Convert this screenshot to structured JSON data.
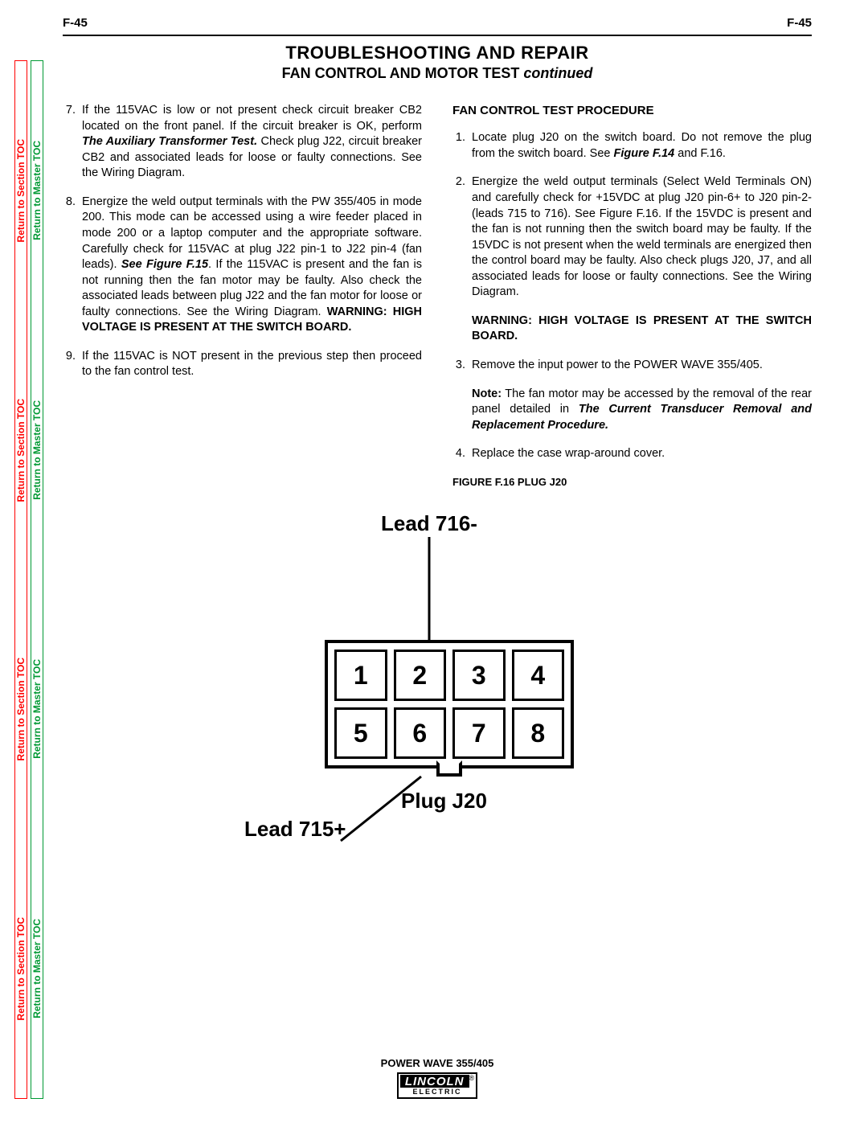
{
  "page_num": "F-45",
  "side_links": {
    "section": "Return to Section TOC",
    "master": "Return to Master TOC"
  },
  "title": "TROUBLESHOOTING AND REPAIR",
  "subtitle_main": "FAN CONTROL AND MOTOR TEST ",
  "subtitle_suffix": "continued",
  "left_items": [
    {
      "n": "7.",
      "html": "If the 115VAC is low or not present check circuit breaker CB2 located on the front panel.  If the circuit breaker is OK, perform <span class='bi'>The Auxiliary Transformer Test.</span>  Check plug J22, circuit breaker CB2 and associated leads for loose or faulty connections.  See the Wiring Diagram."
    },
    {
      "n": "8.",
      "html": "Energize the weld output terminals with the PW 355/405 in mode 200.  This mode can be accessed using a wire feeder placed in mode 200 or a laptop computer and the appropriate software.  Carefully check for 115VAC at plug J22 pin-1 to J22 pin-4 (fan leads).  <span class='bi'>See Figure F.15</span>.  If the 115VAC is present and the fan is not running then the fan motor may be faulty. Also check the associated leads between plug J22 and the fan motor for loose or faulty connections.  See the Wiring Diagram.  <span class='b'>WARNING: HIGH VOLTAGE IS PRESENT AT THE SWITCH BOARD.</span>"
    },
    {
      "n": "9.",
      "html": "If the 115VAC is NOT present in the previous step then proceed to the fan control test."
    }
  ],
  "right_head": "FAN CONTROL TEST PROCEDURE",
  "right_items": [
    {
      "n": "1.",
      "html": "Locate plug J20 on the switch board.  Do not remove the plug from the switch board.  See <span class='bi'>Figure F.14</span> and F.16."
    },
    {
      "n": "2.",
      "html": "Energize the weld output terminals (Select Weld Terminals ON) and carefully check for +15VDC at plug J20 pin-6+ to J20 pin-2- (leads 715 to 716).  See Figure F.16.  If the 15VDC is present and the fan is not running then the switch board may be faulty.   If the 15VDC is not present when the weld terminals are energized then the control board may be faulty.  Also check plugs J20, J7, and all associated leads for loose or faulty connections. See the Wiring Diagram."
    }
  ],
  "warning": "WARNING: HIGH VOLTAGE IS PRESENT AT THE SWITCH BOARD.",
  "right_items2": [
    {
      "n": "3.",
      "html": "Remove the input power to the POWER WAVE 355/405."
    }
  ],
  "note_html": "<span class='b'>Note:</span>  The fan motor may be accessed by the removal of the rear panel detailed in <span class='bi'>The Current Transducer Removal and Replacement Procedure.</span>",
  "right_items3": [
    {
      "n": "4.",
      "html": "Replace the case wrap-around cover."
    }
  ],
  "figure_title": "FIGURE F.16 PLUG J20",
  "figure": {
    "lead_top": "Lead 716-",
    "lead_bottom_left": "Lead 715+",
    "plug_label": "Plug J20",
    "pins": [
      "1",
      "2",
      "3",
      "4",
      "5",
      "6",
      "7",
      "8"
    ]
  },
  "footer_model": "POWER WAVE 355/405",
  "logo_top": "LINCOLN",
  "logo_bot": "ELECTRIC"
}
